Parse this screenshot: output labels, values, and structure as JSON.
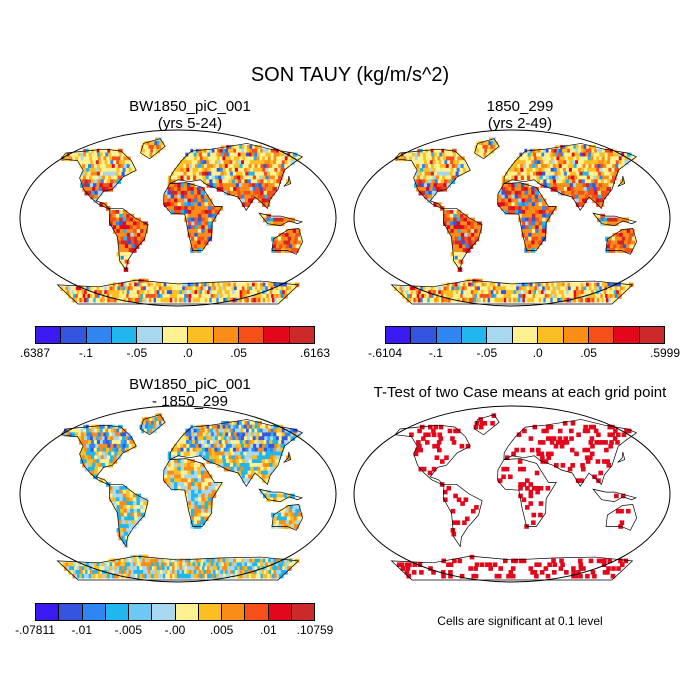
{
  "title": "SON TAUY (kg/m/s^2)",
  "panels": [
    {
      "title_line1": "BW1850_piC_001",
      "title_line2": "(yrs 5-24)",
      "colorbar": {
        "labels": [
          ".6387",
          "-.1",
          "-.05",
          ".0",
          ".05",
          ".6163"
        ],
        "colors": [
          "#3a1af0",
          "#3355e0",
          "#2f86f0",
          "#22b6ef",
          "#a8d8f0",
          "#fdf192",
          "#fbbf24",
          "#f98d18",
          "#f5501a",
          "#e3071b",
          "#cc2a2a"
        ]
      }
    },
    {
      "title_line1": "1850_299",
      "title_line2": "(yrs 2-49)",
      "colorbar": {
        "labels": [
          "-.6104",
          "-.1",
          "-.05",
          ".0",
          ".05",
          ".5999"
        ],
        "colors": [
          "#3a1af0",
          "#3355e0",
          "#2f86f0",
          "#22b6ef",
          "#a8d8f0",
          "#fdf192",
          "#fbbf24",
          "#f98d18",
          "#f5501a",
          "#e3071b",
          "#cc2a2a"
        ]
      }
    },
    {
      "title_line1": "BW1850_piC_001",
      "title_line2": "- 1850_299",
      "colorbar": {
        "labels": [
          "-.07811",
          "-.01",
          "-.005",
          "-.00",
          ".005",
          ".01",
          ".10759"
        ],
        "colors": [
          "#3a1af0",
          "#3355e0",
          "#2f86f0",
          "#22b6ef",
          "#6ec8f4",
          "#a8d8f0",
          "#fdf192",
          "#fbbf24",
          "#f98d18",
          "#f5501a",
          "#e3071b",
          "#cc2a2a"
        ]
      }
    },
    {
      "title_line1": "T-Test of two Case means at each grid point",
      "note": "Cells are significant at 0.1 level"
    }
  ]
}
